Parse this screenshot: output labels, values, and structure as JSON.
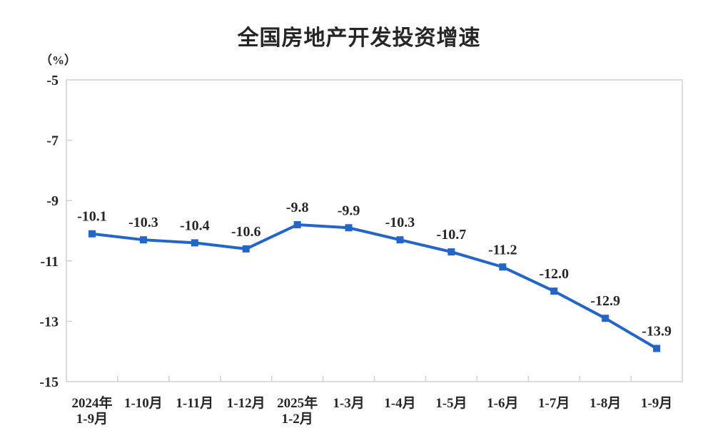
{
  "chart_data": {
    "type": "line",
    "title": "全国房地产开发投资增速",
    "unit_label": "（%）",
    "categories": [
      [
        "2024年",
        "1-9月"
      ],
      [
        "1-10月"
      ],
      [
        "1-11月"
      ],
      [
        "1-12月"
      ],
      [
        "2025年",
        "1-2月"
      ],
      [
        "1-3月"
      ],
      [
        "1-4月"
      ],
      [
        "1-5月"
      ],
      [
        "1-6月"
      ],
      [
        "1-7月"
      ],
      [
        "1-8月"
      ],
      [
        "1-9月"
      ]
    ],
    "series": [
      {
        "name": "全国房地产开发投资增速",
        "values": [
          -10.1,
          -10.3,
          -10.4,
          -10.6,
          -9.8,
          -9.9,
          -10.3,
          -10.7,
          -11.2,
          -12.0,
          -12.9,
          -13.9
        ]
      }
    ],
    "data_labels": [
      "-10.1",
      "-10.3",
      "-10.4",
      "-10.6",
      "-9.8",
      "-9.9",
      "-10.3",
      "-10.7",
      "-11.2",
      "-12.0",
      "-12.9",
      "-13.9"
    ],
    "ylim": [
      -15,
      -5
    ],
    "yticks": [
      -5,
      -7,
      -9,
      -11,
      -13,
      -15
    ],
    "grid": false,
    "legend": "none",
    "marker": "square",
    "colors": {
      "line": "#2365C8",
      "axis": "#D4D4D4",
      "text": "#262626"
    }
  }
}
